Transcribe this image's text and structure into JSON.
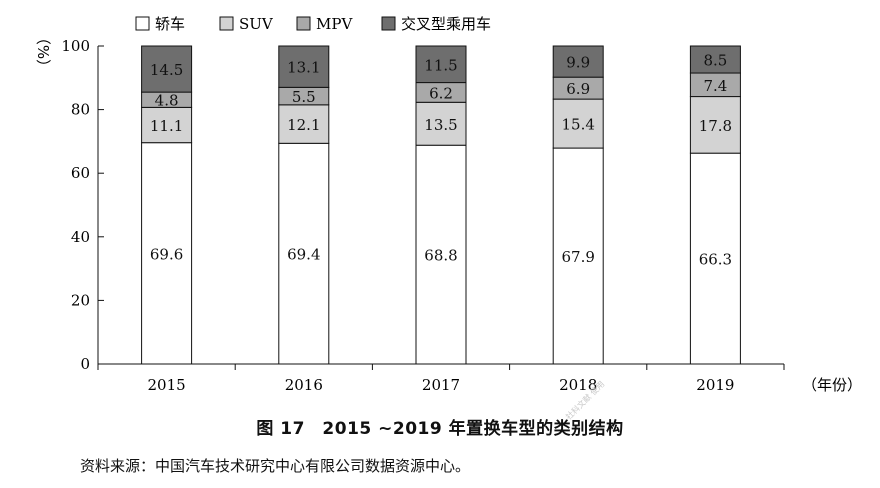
{
  "caption": "图 17　2015 ~2019 年置换车型的类别结构",
  "source": "资料来源：中国汽车技术研究中心有限公司数据资源中心。",
  "watermark": "社科文献 使用",
  "chart_data": {
    "type": "bar",
    "stacked": true,
    "categories": [
      "2015",
      "2016",
      "2017",
      "2018",
      "2019"
    ],
    "series": [
      {
        "name": "轿车",
        "color": "#ffffff",
        "values": [
          69.6,
          69.4,
          68.8,
          67.9,
          66.3
        ]
      },
      {
        "name": "SUV",
        "color": "#d3d3d3",
        "values": [
          11.1,
          12.1,
          13.5,
          15.4,
          17.8
        ]
      },
      {
        "name": "MPV",
        "color": "#a9a9a9",
        "values": [
          4.8,
          5.5,
          6.2,
          6.9,
          7.4
        ]
      },
      {
        "name": "交叉型乘用车",
        "color": "#6e6e6e",
        "values": [
          14.5,
          13.1,
          11.5,
          9.9,
          8.5
        ]
      }
    ],
    "ylabel": "（%）",
    "xlabel": "（年份）",
    "ylim": [
      0,
      100
    ],
    "yticks": [
      "0",
      "20",
      "40",
      "60",
      "80",
      "100"
    ],
    "legend": "top"
  }
}
